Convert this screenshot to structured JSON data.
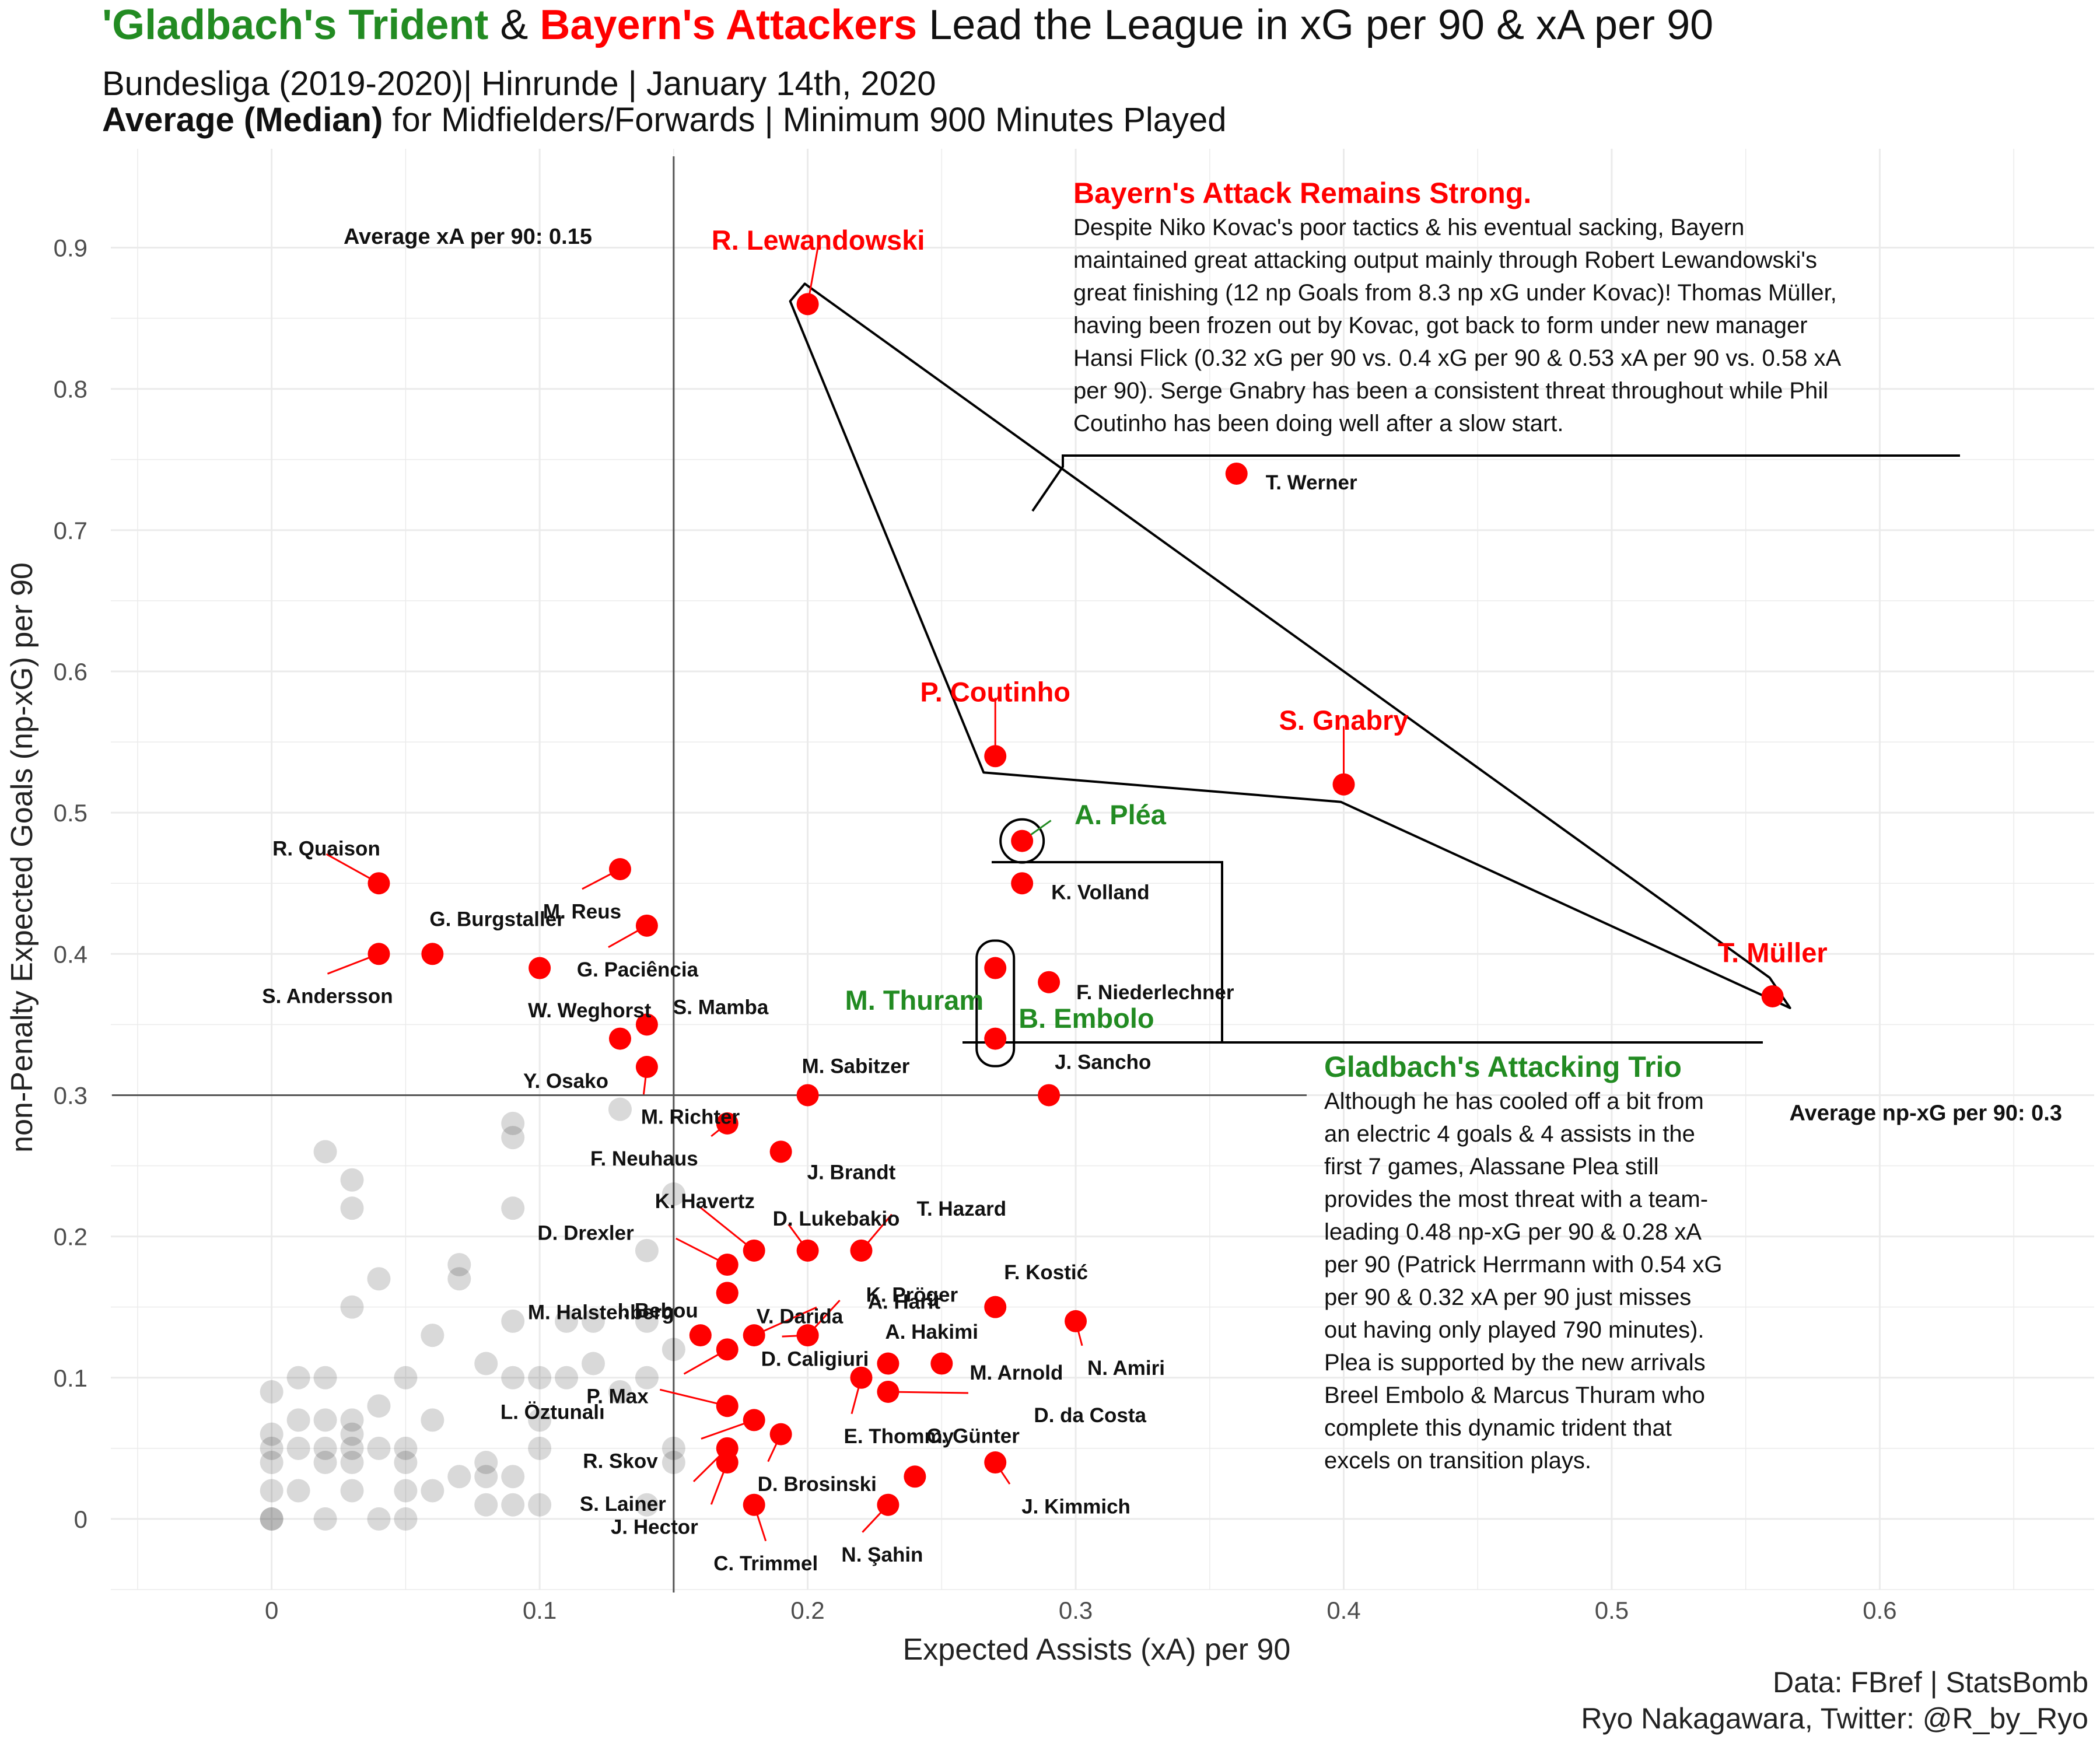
{
  "title": {
    "part_green": "'Gladbach's Trident",
    "part_amp": " & ",
    "part_red": "Bayern's Attackers",
    "part_rest": " Lead the League in xG per 90 & xA per 90"
  },
  "subtitle": {
    "line1": "Bundesliga (2019-2020)| Hinrunde | January 14th, 2020",
    "line2_bold": "Average (Median)",
    "line2_rest": " for Midfielders/Forwards | Minimum 900 Minutes Played"
  },
  "caption": {
    "line1": "Data: FBref | StatsBomb",
    "line2": "Ryo Nakagawara, Twitter: @R_by_Ryo"
  },
  "annotations": {
    "bayern": {
      "heading": "Bayern's Attack Remains Strong.",
      "lines": [
        "Despite Niko Kovac's poor tactics & his eventual sacking, Bayern",
        "maintained great attacking output mainly through Robert Lewandowski's",
        "great finishing (12 np Goals from 8.3 np xG under Kovac)! Thomas Müller,",
        "having been frozen out by Kovac, got back to form under new manager",
        "Hansi Flick (0.32 xG per 90 vs. 0.4 xG per 90 & 0.53 xA per 90 vs. 0.58 xA",
        "per 90). Serge Gnabry has been a consistent threat throughout while Phil",
        "Coutinho has been doing well after a slow start."
      ]
    },
    "gladbach": {
      "heading": "Gladbach's Attacking Trio",
      "lines": [
        "Although he has cooled off a bit from",
        "an electric 4 goals & 4 assists in the",
        "first 7 games, Alassane Plea still",
        "provides the most threat with a team-",
        "leading 0.48 np-xG per 90 & 0.28 xA",
        "per 90 (Patrick Herrmann with 0.54 xG",
        "per 90 & 0.32 xA per 90 just misses",
        "out having only played 790 minutes).",
        "Plea is supported by the new arrivals",
        "Breel Embolo & Marcus Thuram who",
        "complete this dynamic trident that",
        "excels on transition plays."
      ]
    }
  },
  "colors": {
    "bayern": "#FF0000",
    "gladbach": "#228B22",
    "highlight_point": "#FF0000",
    "background_point": "#000000",
    "grid": "#EBEBEB"
  },
  "chart_data": {
    "type": "scatter",
    "xlabel": "Expected Assists (xA) per 90",
    "ylabel": "non-Penalty Expected Goals (np-xG) per 90",
    "xlim": [
      -0.06,
      0.68
    ],
    "ylim": [
      -0.05,
      0.97
    ],
    "x_ticks": [
      0,
      0.1,
      0.2,
      0.3,
      0.4,
      0.5,
      0.6
    ],
    "x_tick_labels": [
      "0",
      "0.1",
      "0.2",
      "0.3",
      "0.4",
      "0.5",
      "0.6"
    ],
    "y_ticks": [
      0,
      0.1,
      0.2,
      0.3,
      0.4,
      0.5,
      0.6,
      0.7,
      0.8,
      0.9
    ],
    "y_tick_labels": [
      "0",
      "0.1",
      "0.2",
      "0.3",
      "0.4",
      "0.5",
      "0.6",
      "0.7",
      "0.8",
      "0.9"
    ],
    "grid": true,
    "median_lines": {
      "xA": {
        "value": 0.15,
        "label": "Average xA per 90: 0.15"
      },
      "npxG": {
        "value": 0.3,
        "label": "Average np-xG per 90: 0.3"
      }
    },
    "highlighted_players": [
      {
        "name": "R. Lewandowski",
        "xA": 0.2,
        "npxG": 0.86,
        "team": "bayern"
      },
      {
        "name": "T. Werner",
        "xA": 0.36,
        "npxG": 0.74,
        "team": "other"
      },
      {
        "name": "P. Coutinho",
        "xA": 0.27,
        "npxG": 0.54,
        "team": "bayern"
      },
      {
        "name": "S. Gnabry",
        "xA": 0.4,
        "npxG": 0.52,
        "team": "bayern"
      },
      {
        "name": "T. Müller",
        "xA": 0.56,
        "npxG": 0.37,
        "team": "bayern"
      },
      {
        "name": "A. Pléa",
        "xA": 0.28,
        "npxG": 0.48,
        "team": "gladbach"
      },
      {
        "name": "K. Volland",
        "xA": 0.28,
        "npxG": 0.45,
        "team": "other"
      },
      {
        "name": "M. Thuram",
        "xA": 0.27,
        "npxG": 0.39,
        "team": "gladbach"
      },
      {
        "name": "B. Embolo",
        "xA": 0.27,
        "npxG": 0.34,
        "team": "gladbach"
      },
      {
        "name": "F. Niederlechner",
        "xA": 0.29,
        "npxG": 0.38,
        "team": "other"
      },
      {
        "name": "J. Sancho",
        "xA": 0.29,
        "npxG": 0.3,
        "team": "other"
      },
      {
        "name": "R. Quaison",
        "xA": 0.04,
        "npxG": 0.45,
        "team": "other"
      },
      {
        "name": "S. Andersson",
        "xA": 0.04,
        "npxG": 0.4,
        "team": "other"
      },
      {
        "name": "G. Burgstaller",
        "xA": 0.06,
        "npxG": 0.4,
        "team": "other"
      },
      {
        "name": "M. Reus",
        "xA": 0.13,
        "npxG": 0.46,
        "team": "other"
      },
      {
        "name": "G. Paciência",
        "xA": 0.14,
        "npxG": 0.42,
        "team": "other"
      },
      {
        "name": "W. Weghorst",
        "xA": 0.1,
        "npxG": 0.39,
        "team": "other"
      },
      {
        "name": "S. Mamba",
        "xA": 0.14,
        "npxG": 0.35,
        "team": "other"
      },
      {
        "name": "Y. Osako",
        "xA": 0.13,
        "npxG": 0.34,
        "team": "other"
      },
      {
        "name": "M. Richter",
        "xA": 0.14,
        "npxG": 0.32,
        "team": "other"
      },
      {
        "name": "M. Sabitzer",
        "xA": 0.2,
        "npxG": 0.3,
        "team": "other"
      },
      {
        "name": "F. Neuhaus",
        "xA": 0.17,
        "npxG": 0.28,
        "team": "other"
      },
      {
        "name": "J. Brandt",
        "xA": 0.19,
        "npxG": 0.26,
        "team": "other"
      },
      {
        "name": "K. Havertz",
        "xA": 0.18,
        "npxG": 0.19,
        "team": "other"
      },
      {
        "name": "D. Lukebakio",
        "xA": 0.2,
        "npxG": 0.19,
        "team": "other"
      },
      {
        "name": "T. Hazard",
        "xA": 0.22,
        "npxG": 0.19,
        "team": "other"
      },
      {
        "name": "D. Drexler",
        "xA": 0.17,
        "npxG": 0.18,
        "team": "other"
      },
      {
        "name": "I. Bebou",
        "xA": 0.17,
        "npxG": 0.16,
        "team": "other"
      },
      {
        "name": "V. Darida",
        "xA": 0.17,
        "npxG": 0.16,
        "team": "other"
      },
      {
        "name": "A. Harit",
        "xA": 0.18,
        "npxG": 0.13,
        "team": "other"
      },
      {
        "name": "K. Pröger",
        "xA": 0.2,
        "npxG": 0.13,
        "team": "other"
      },
      {
        "name": "F. Kostić",
        "xA": 0.27,
        "npxG": 0.15,
        "team": "other"
      },
      {
        "name": "M. Halstenberg",
        "xA": 0.16,
        "npxG": 0.13,
        "team": "other"
      },
      {
        "name": "D. Caligiuri",
        "xA": 0.2,
        "npxG": 0.13,
        "team": "other"
      },
      {
        "name": "A. Hakimi",
        "xA": 0.23,
        "npxG": 0.11,
        "team": "other"
      },
      {
        "name": "M. Arnold",
        "xA": 0.25,
        "npxG": 0.11,
        "team": "other"
      },
      {
        "name": "N. Amiri",
        "xA": 0.3,
        "npxG": 0.14,
        "team": "other"
      },
      {
        "name": "P. Max",
        "xA": 0.17,
        "npxG": 0.12,
        "team": "other"
      },
      {
        "name": "D. da Costa",
        "xA": 0.23,
        "npxG": 0.09,
        "team": "other"
      },
      {
        "name": "L. Öztunalı",
        "xA": 0.17,
        "npxG": 0.08,
        "team": "other"
      },
      {
        "name": "E. Thommy",
        "xA": 0.22,
        "npxG": 0.1,
        "team": "other"
      },
      {
        "name": "R. Skov",
        "xA": 0.18,
        "npxG": 0.07,
        "team": "other"
      },
      {
        "name": "C. Günter",
        "xA": 0.24,
        "npxG": 0.03,
        "team": "other"
      },
      {
        "name": "S. Lainer",
        "xA": 0.17,
        "npxG": 0.05,
        "team": "other"
      },
      {
        "name": "D. Brosinski",
        "xA": 0.19,
        "npxG": 0.06,
        "team": "other"
      },
      {
        "name": "J. Kimmich",
        "xA": 0.27,
        "npxG": 0.04,
        "team": "other"
      },
      {
        "name": "J. Hector",
        "xA": 0.17,
        "npxG": 0.04,
        "team": "other"
      },
      {
        "name": "C. Trimmel",
        "xA": 0.18,
        "npxG": 0.01,
        "team": "other"
      },
      {
        "name": "N. Şahin",
        "xA": 0.23,
        "npxG": 0.01,
        "team": "other"
      }
    ],
    "other_players": [
      {
        "xA": 0.0,
        "npxG": 0.0
      },
      {
        "xA": 0.0,
        "npxG": 0.0
      },
      {
        "xA": 0.0,
        "npxG": 0.02
      },
      {
        "xA": 0.0,
        "npxG": 0.04
      },
      {
        "xA": 0.0,
        "npxG": 0.05
      },
      {
        "xA": 0.0,
        "npxG": 0.06
      },
      {
        "xA": 0.0,
        "npxG": 0.09
      },
      {
        "xA": 0.01,
        "npxG": 0.02
      },
      {
        "xA": 0.01,
        "npxG": 0.05
      },
      {
        "xA": 0.01,
        "npxG": 0.07
      },
      {
        "xA": 0.01,
        "npxG": 0.1
      },
      {
        "xA": 0.02,
        "npxG": 0.0
      },
      {
        "xA": 0.02,
        "npxG": 0.04
      },
      {
        "xA": 0.02,
        "npxG": 0.05
      },
      {
        "xA": 0.02,
        "npxG": 0.07
      },
      {
        "xA": 0.02,
        "npxG": 0.1
      },
      {
        "xA": 0.02,
        "npxG": 0.26
      },
      {
        "xA": 0.03,
        "npxG": 0.02
      },
      {
        "xA": 0.03,
        "npxG": 0.04
      },
      {
        "xA": 0.03,
        "npxG": 0.05
      },
      {
        "xA": 0.03,
        "npxG": 0.06
      },
      {
        "xA": 0.03,
        "npxG": 0.07
      },
      {
        "xA": 0.03,
        "npxG": 0.15
      },
      {
        "xA": 0.03,
        "npxG": 0.22
      },
      {
        "xA": 0.03,
        "npxG": 0.24
      },
      {
        "xA": 0.04,
        "npxG": 0.0
      },
      {
        "xA": 0.04,
        "npxG": 0.05
      },
      {
        "xA": 0.04,
        "npxG": 0.08
      },
      {
        "xA": 0.04,
        "npxG": 0.17
      },
      {
        "xA": 0.05,
        "npxG": 0.0
      },
      {
        "xA": 0.05,
        "npxG": 0.02
      },
      {
        "xA": 0.05,
        "npxG": 0.04
      },
      {
        "xA": 0.05,
        "npxG": 0.05
      },
      {
        "xA": 0.05,
        "npxG": 0.1
      },
      {
        "xA": 0.06,
        "npxG": 0.02
      },
      {
        "xA": 0.06,
        "npxG": 0.07
      },
      {
        "xA": 0.06,
        "npxG": 0.13
      },
      {
        "xA": 0.07,
        "npxG": 0.03
      },
      {
        "xA": 0.07,
        "npxG": 0.17
      },
      {
        "xA": 0.07,
        "npxG": 0.18
      },
      {
        "xA": 0.08,
        "npxG": 0.01
      },
      {
        "xA": 0.08,
        "npxG": 0.03
      },
      {
        "xA": 0.08,
        "npxG": 0.04
      },
      {
        "xA": 0.08,
        "npxG": 0.11
      },
      {
        "xA": 0.09,
        "npxG": 0.01
      },
      {
        "xA": 0.09,
        "npxG": 0.03
      },
      {
        "xA": 0.09,
        "npxG": 0.1
      },
      {
        "xA": 0.09,
        "npxG": 0.14
      },
      {
        "xA": 0.09,
        "npxG": 0.22
      },
      {
        "xA": 0.09,
        "npxG": 0.27
      },
      {
        "xA": 0.09,
        "npxG": 0.28
      },
      {
        "xA": 0.1,
        "npxG": 0.01
      },
      {
        "xA": 0.1,
        "npxG": 0.05
      },
      {
        "xA": 0.1,
        "npxG": 0.07
      },
      {
        "xA": 0.1,
        "npxG": 0.1
      },
      {
        "xA": 0.11,
        "npxG": 0.1
      },
      {
        "xA": 0.11,
        "npxG": 0.14
      },
      {
        "xA": 0.12,
        "npxG": 0.11
      },
      {
        "xA": 0.12,
        "npxG": 0.14
      },
      {
        "xA": 0.13,
        "npxG": 0.09
      },
      {
        "xA": 0.13,
        "npxG": 0.29
      },
      {
        "xA": 0.14,
        "npxG": 0.01
      },
      {
        "xA": 0.14,
        "npxG": 0.1
      },
      {
        "xA": 0.14,
        "npxG": 0.14
      },
      {
        "xA": 0.14,
        "npxG": 0.19
      },
      {
        "xA": 0.15,
        "npxG": 0.04
      },
      {
        "xA": 0.15,
        "npxG": 0.05
      },
      {
        "xA": 0.15,
        "npxG": 0.12
      },
      {
        "xA": 0.15,
        "npxG": 0.23
      }
    ]
  }
}
